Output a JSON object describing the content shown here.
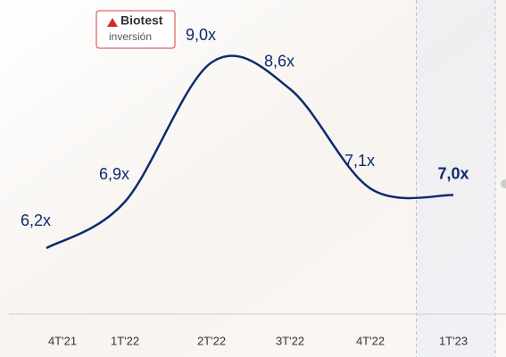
{
  "logo": {
    "name": "Biotest",
    "tagline": "inversión"
  },
  "chart_data": {
    "type": "line",
    "categories": [
      "4T'21",
      "1T'22",
      "2T'22",
      "3T'22",
      "4T'22",
      "1T'23"
    ],
    "values": [
      6.2,
      6.9,
      9.0,
      8.6,
      7.1,
      7.0
    ],
    "value_labels": [
      "6,2x",
      "6,9x",
      "9,0x",
      "8,6x",
      "7,1x",
      "7,0x"
    ],
    "color": "#0f2a6e",
    "highlight": "1T'23"
  }
}
